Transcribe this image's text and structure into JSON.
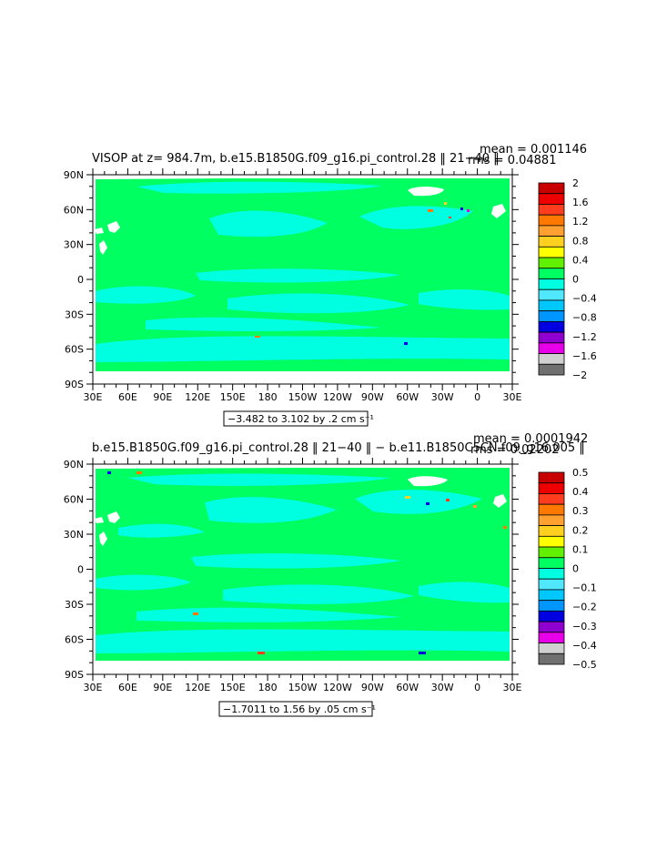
{
  "colors": {
    "land": "#ffffff",
    "ocean_zero": "#00ff60",
    "ocean_neg": "#00ffe0",
    "frame": "#000000"
  },
  "chart_data": [
    {
      "type": "heatmap",
      "title": "VISOP at z= 984.7m, b.e15.B1850G.f09_g16.pi_control.28 ‖ 21−40 ‖",
      "stat_mean": "mean = 0.001146",
      "stat_rms": "rms = 0.04881",
      "range_label": "−3.482 to 3.102 by .2 cm s⁻¹",
      "xticks": [
        "30E",
        "60E",
        "90E",
        "120E",
        "150E",
        "180",
        "150W",
        "120W",
        "90W",
        "60W",
        "30W",
        "0",
        "30E"
      ],
      "yticks": [
        "90N",
        "60N",
        "30N",
        "0",
        "30S",
        "60S",
        "90S"
      ],
      "colorbar": {
        "labels": [
          "2",
          "1.6",
          "1.2",
          "0.8",
          "0.4",
          "0",
          "−0.4",
          "−0.8",
          "−1.2",
          "−1.6",
          "−2"
        ],
        "colors": [
          "#c80000",
          "#ee0000",
          "#ff3c1e",
          "#ff7800",
          "#ffa030",
          "#ffd020",
          "#ffff00",
          "#60f000",
          "#00ff60",
          "#00ffe0",
          "#50e8ff",
          "#00c8ff",
          "#0096ff",
          "#0000e0",
          "#9000d0",
          "#e800e8",
          "#d0d0d0",
          "#707070"
        ]
      }
    },
    {
      "type": "heatmap",
      "title": "b.e15.B1850G.f09_g16.pi_control.28 ‖ 21−40 ‖ − b.e11.B1850C5CN.f09_g16.005 ‖",
      "stat_mean": "mean = 0.0001942",
      "stat_rms": "rms = 0.02202",
      "range_label": "−1.7011 to 1.56 by .05 cm s⁻¹",
      "xticks": [
        "30E",
        "60E",
        "90E",
        "120E",
        "150E",
        "180",
        "150W",
        "120W",
        "90W",
        "60W",
        "30W",
        "0",
        "30E"
      ],
      "yticks": [
        "90N",
        "60N",
        "30N",
        "0",
        "30S",
        "60S",
        "90S"
      ],
      "colorbar": {
        "labels": [
          "0.5",
          "0.4",
          "0.3",
          "0.2",
          "0.1",
          "0",
          "−0.1",
          "−0.2",
          "−0.3",
          "−0.4",
          "−0.5"
        ],
        "colors": [
          "#c80000",
          "#ee0000",
          "#ff3c1e",
          "#ff7800",
          "#ffa030",
          "#ffd020",
          "#ffff00",
          "#60f000",
          "#00ff60",
          "#00ffe0",
          "#50e8ff",
          "#00c8ff",
          "#0096ff",
          "#0000e0",
          "#9000d0",
          "#e800e8",
          "#d0d0d0",
          "#707070"
        ]
      }
    }
  ]
}
